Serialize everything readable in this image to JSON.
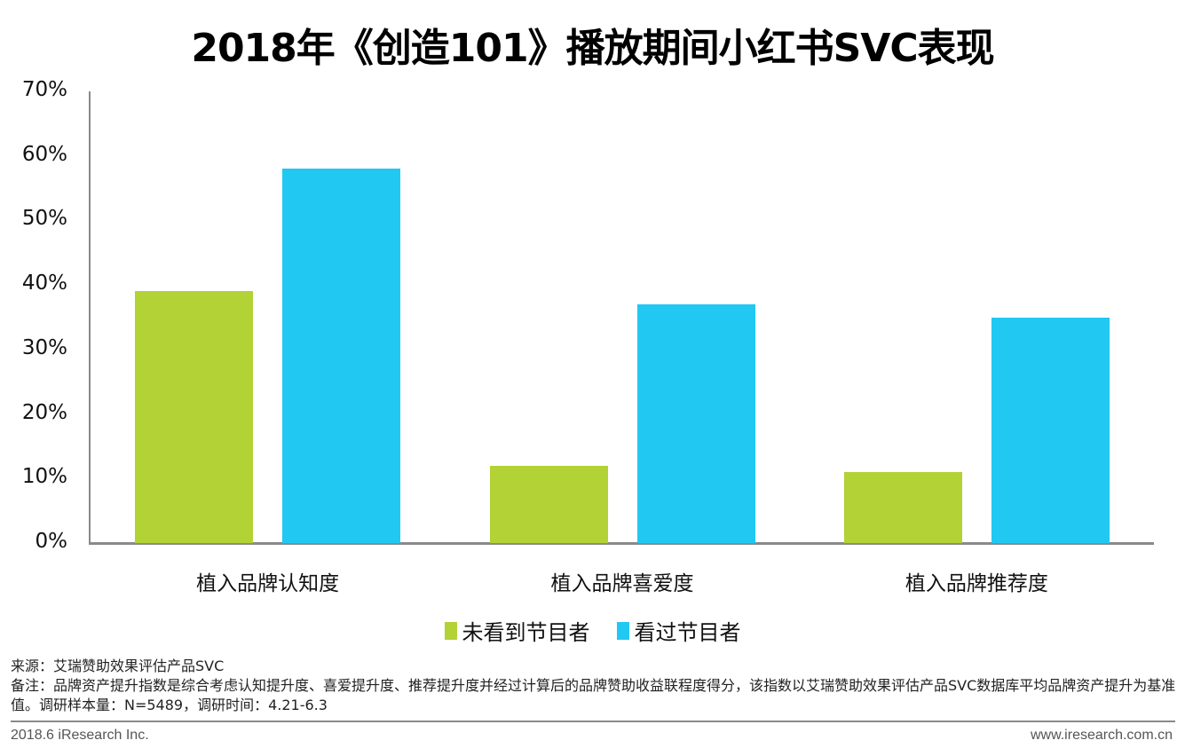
{
  "title": "2018年《创造101》播放期间小红书SVC表现",
  "chart_data": {
    "type": "bar",
    "title": "2018年《创造101》播放期间小红书SVC表现",
    "categories": [
      "植入品牌认知度",
      "植入品牌喜爱度",
      "植入品牌推荐度"
    ],
    "series": [
      {
        "name": "未看到节目者",
        "color": "#b2d235",
        "values": [
          39,
          12,
          11
        ]
      },
      {
        "name": "看过节目者",
        "color": "#20c8f2",
        "values": [
          58,
          37,
          35
        ]
      }
    ],
    "ylim": [
      0,
      70
    ],
    "yticks": [
      "0%",
      "10%",
      "20%",
      "30%",
      "40%",
      "50%",
      "60%",
      "70%"
    ],
    "xlabel": "",
    "ylabel": "",
    "grid": false,
    "legend_position": "bottom"
  },
  "notes": {
    "source": "来源：艾瑞赞助效果评估产品SVC",
    "remark": "备注：品牌资产提升指数是综合考虑认知提升度、喜爱提升度、推荐提升度并经过计算后的品牌赞助收益联程度得分，该指数以艾瑞赞助效果评估产品SVC数据库平均品牌资产提升为基准值。调研样本量：N=5489，调研时间：4.21-6.3"
  },
  "footer": {
    "left": "2018.6 iResearch Inc.",
    "right": "www.iresearch.com.cn"
  }
}
